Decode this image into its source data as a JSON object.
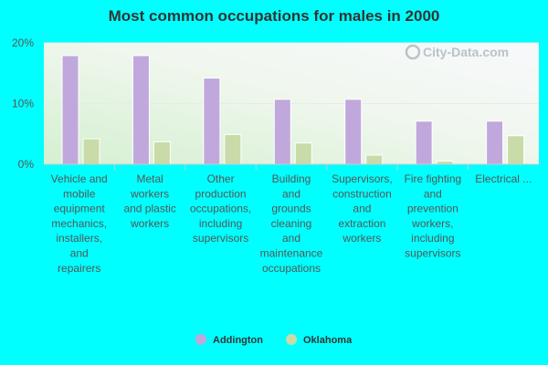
{
  "chart_data": {
    "type": "bar",
    "title": "Most common occupations for males in 2000",
    "xlabel": "",
    "ylabel": "",
    "ylim": [
      0,
      20
    ],
    "yticks": [
      "0%",
      "10%",
      "20%"
    ],
    "grid": true,
    "legend": "bottom",
    "categories": [
      [
        "Vehicle and",
        "mobile",
        "equipment",
        "mechanics,",
        "installers,",
        "and",
        "repairers"
      ],
      [
        "Metal",
        "workers",
        "and plastic",
        "workers"
      ],
      [
        "Other",
        "production",
        "occupations,",
        "including",
        "supervisors"
      ],
      [
        "Building",
        "and",
        "grounds",
        "cleaning",
        "and",
        "maintenance",
        "occupations"
      ],
      [
        "Supervisors,",
        "construction",
        "and",
        "extraction",
        "workers"
      ],
      [
        "Fire fighting",
        "and",
        "prevention",
        "workers,",
        "including",
        "supervisors"
      ],
      [
        "Electrical ..."
      ]
    ],
    "series": [
      {
        "name": "Addington",
        "color": "#c0a8dc",
        "values": [
          17.9,
          17.9,
          14.2,
          10.7,
          10.7,
          7.1,
          7.1
        ]
      },
      {
        "name": "Oklahoma",
        "color": "#c8dba8",
        "values": [
          4.2,
          3.7,
          4.9,
          3.5,
          1.5,
          0.5,
          4.7
        ]
      }
    ]
  },
  "watermark": "City-Data.com"
}
